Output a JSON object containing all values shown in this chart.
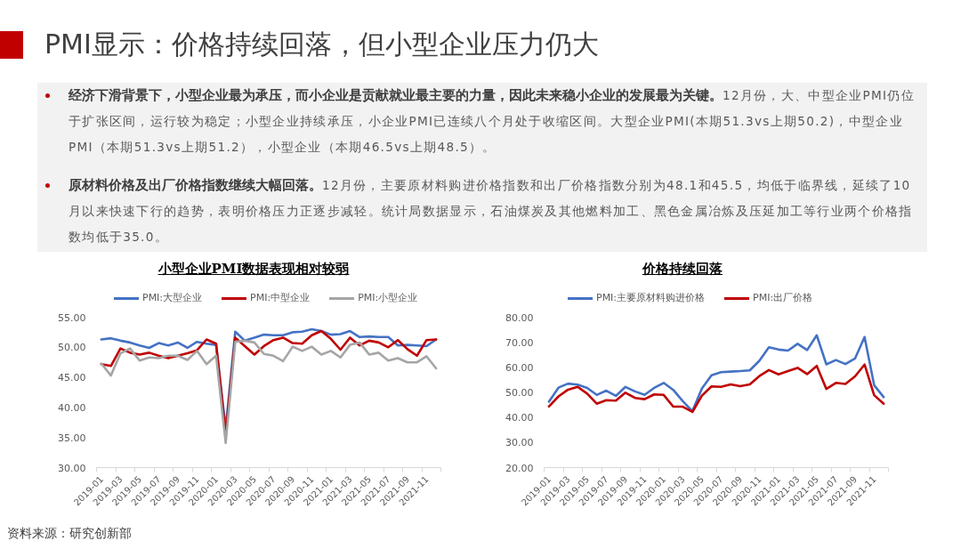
{
  "chart_data": [
    {
      "type": "other",
      "title": "PMI显示：价格持续回落，但小型企业压力仍大",
      "annotations": [
        "经济下滑背景下，小型企业最为承压，而小企业是贡献就业最主要的力量，因此未来稳小企业的发展最为关键。",
        "12月份，大、中型企业PMI仍位于扩张区间，运行较为稳定；小型企业持续承压，小企业PMI已连续八个月处于收缩区间。大型企业PMI(本期51.3vs上期50.2)，中型企业PMI（本期51.3vs上期51.2），小型企业（本期46.5vs上期48.5）。",
        "原材料价格及出厂价格指数继续大幅回落。",
        "12月份，主要原材料购进价格指数和出厂价格指数分别为48.1和45.5，均低于临界线，延续了10月以来快速下行的趋势，表明价格压力正逐步减轻。统计局数据显示，石油煤炭及其他燃料加工、黑色金属冶炼及压延加工等行业两个价格指数均低于35.0。"
      ]
    },
    {
      "type": "line",
      "title": "小型企业PMI数据表现相对较弱",
      "categories": [
        "2019-01",
        null,
        "2019-03",
        null,
        "2019-05",
        null,
        "2019-07",
        null,
        "2019-09",
        null,
        "2019-11",
        null,
        "2020-01",
        null,
        "2020-03",
        null,
        "2020-05",
        null,
        "2020-07",
        null,
        "2020-09",
        null,
        "2020-11",
        null,
        "2021-01",
        null,
        "2021-03",
        null,
        "2021-05",
        null,
        "2021-07",
        null,
        "2021-09",
        null,
        "2021-11",
        null
      ],
      "ylim": [
        30,
        55
      ],
      "yticks": [
        {
          "value": 30,
          "label": "30.00"
        },
        {
          "value": 35,
          "label": "35.00"
        },
        {
          "value": 40,
          "label": "40.00"
        },
        {
          "value": 45,
          "label": "45.00"
        },
        {
          "value": 50,
          "label": "50.00"
        },
        {
          "value": 55,
          "label": "55.00"
        }
      ],
      "legend": "top",
      "line_style": "solid",
      "series": [
        {
          "name": "PMI:大型企业",
          "color": "#4472c4",
          "values": [
            51.3,
            51.5,
            51.1,
            50.8,
            50.3,
            49.9,
            50.7,
            50.3,
            50.8,
            49.9,
            50.9,
            50.6,
            50.4,
            36.5,
            52.6,
            51.1,
            51.6,
            52.1,
            52.0,
            52.0,
            52.5,
            52.6,
            53.0,
            52.7,
            52.1,
            52.2,
            52.7,
            51.7,
            51.8,
            51.7,
            51.7,
            50.3,
            50.4,
            50.3,
            50.2,
            51.3
          ]
        },
        {
          "name": "PMI:中型企业",
          "color": "#c00000",
          "values": [
            47.2,
            46.9,
            49.8,
            49.1,
            48.8,
            49.1,
            48.6,
            48.2,
            48.6,
            49.0,
            49.5,
            51.3,
            50.6,
            35.5,
            51.6,
            50.2,
            48.8,
            50.2,
            51.2,
            51.6,
            50.7,
            50.6,
            52.0,
            52.7,
            51.4,
            49.6,
            51.6,
            50.3,
            51.1,
            50.8,
            50.0,
            51.2,
            49.7,
            48.6,
            51.2,
            51.3
          ]
        },
        {
          "name": "PMI:小型企业",
          "color": "#a5a5a5",
          "values": [
            47.3,
            45.3,
            49.0,
            49.8,
            47.8,
            48.3,
            48.2,
            48.6,
            48.6,
            47.9,
            49.4,
            47.2,
            48.6,
            34.1,
            50.9,
            51.1,
            50.8,
            48.9,
            48.6,
            47.7,
            50.1,
            49.4,
            50.1,
            48.8,
            49.4,
            48.3,
            50.4,
            50.8,
            48.8,
            49.1,
            47.8,
            48.2,
            47.5,
            47.5,
            48.5,
            46.5
          ]
        }
      ]
    },
    {
      "type": "line",
      "title": "价格持续回落",
      "categories": [
        "2019-01",
        null,
        "2019-03",
        null,
        "2019-05",
        null,
        "2019-07",
        null,
        "2019-09",
        null,
        "2019-11",
        null,
        "2020-01",
        null,
        "2020-03",
        null,
        "2020-05",
        null,
        "2020-07",
        null,
        "2020-09",
        null,
        "2020-11",
        null,
        "2021-01",
        null,
        "2021-03",
        null,
        "2021-05",
        null,
        "2021-07",
        null,
        "2021-09",
        null,
        "2021-11",
        null
      ],
      "ylim": [
        20,
        80
      ],
      "yticks": [
        {
          "value": 20,
          "label": "20.00"
        },
        {
          "value": 30,
          "label": "30.00"
        },
        {
          "value": 40,
          "label": "40.00"
        },
        {
          "value": 50,
          "label": "50.00"
        },
        {
          "value": 60,
          "label": "60.00"
        },
        {
          "value": 70,
          "label": "70.00"
        },
        {
          "value": 80,
          "label": "80.00"
        }
      ],
      "legend": "top",
      "line_style": "solid",
      "series": [
        {
          "name": "PMI:主要原材料购进价格",
          "color": "#4472c4",
          "values": [
            46.3,
            51.9,
            53.5,
            53.1,
            51.8,
            49.0,
            50.7,
            48.6,
            52.2,
            50.4,
            49.0,
            51.8,
            53.8,
            51.0,
            46.5,
            42.5,
            51.6,
            56.8,
            58.1,
            58.3,
            58.5,
            58.8,
            62.6,
            68.0,
            67.1,
            66.7,
            69.4,
            66.9,
            72.8,
            61.2,
            62.9,
            61.3,
            63.5,
            72.1,
            52.9,
            48.1
          ]
        },
        {
          "name": "PMI:出厂价格",
          "color": "#c00000",
          "values": [
            44.4,
            48.4,
            51.1,
            52.2,
            49.5,
            45.5,
            46.9,
            46.7,
            49.9,
            47.8,
            47.3,
            49.2,
            49.0,
            44.3,
            44.3,
            42.2,
            48.7,
            52.4,
            52.2,
            53.2,
            52.5,
            53.2,
            56.5,
            58.9,
            57.2,
            58.5,
            59.8,
            57.3,
            60.6,
            51.4,
            53.8,
            53.4,
            56.4,
            61.1,
            48.9,
            45.5
          ]
        }
      ]
    },
    {
      "type": "other",
      "annotations": [
        "资料来源：研究创新部"
      ]
    }
  ]
}
